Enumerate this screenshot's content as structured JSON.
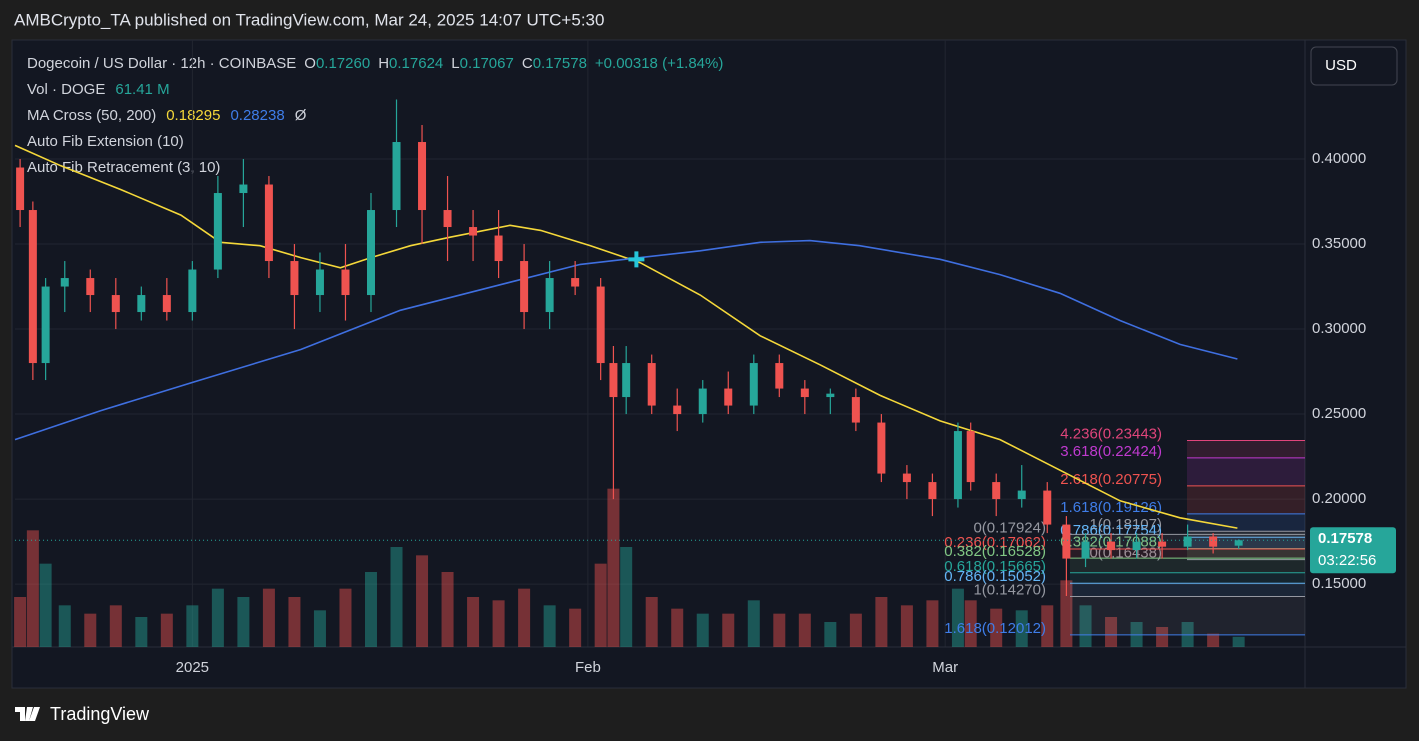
{
  "header": {
    "publisher": "AMBCrypto_TA published on TradingView.com, Mar 24, 2025 14:07 UTC+5:30",
    "brand": "TradingView"
  },
  "chart_data": {
    "type": "candlestick",
    "symbol": "Dogecoin / US Dollar · 12h · COINBASE",
    "ohlc_labels": [
      "O",
      "H",
      "L",
      "C"
    ],
    "ohlc_values": [
      "0.17260",
      "0.17624",
      "0.17067",
      "0.17578"
    ],
    "change": "+0.00318 (+1.84%)",
    "volume_label": "Vol · DOGE",
    "volume_value": "61.41 M",
    "ma_label": "MA Cross (50, 200)",
    "ma_symbol": "Ø",
    "indicators": [
      "Auto Fib Extension (10)",
      "Auto Fib Retracement (3, 10)"
    ],
    "currency": "USD",
    "last_price_label": "0.17578",
    "countdown": "03:22:56",
    "up_color": "#26a69a",
    "down_color": "#ef5350",
    "xlim": [
      -13.9,
      87.2
    ],
    "xticks": [
      {
        "value": 0,
        "label": "2025"
      },
      {
        "value": 31,
        "label": "Feb"
      },
      {
        "value": 59,
        "label": "Mar"
      }
    ],
    "ylim": [
      0.113,
      0.47
    ],
    "yticks": [
      {
        "value": 0.15,
        "label": "0.15000"
      },
      {
        "value": 0.2,
        "label": "0.20000"
      },
      {
        "value": 0.25,
        "label": "0.25000"
      },
      {
        "value": 0.3,
        "label": "0.30000"
      },
      {
        "value": 0.35,
        "label": "0.35000"
      },
      {
        "value": 0.4,
        "label": "0.40000"
      }
    ],
    "vlim": [
      0,
      1200
    ],
    "grid": true,
    "candles": [
      {
        "x": -13.5,
        "open": 0.395,
        "high": 0.4,
        "low": 0.36,
        "close": 0.37,
        "volume": 300
      },
      {
        "x": -12.5,
        "open": 0.37,
        "high": 0.375,
        "low": 0.27,
        "close": 0.28,
        "volume": 700
      },
      {
        "x": -11.5,
        "open": 0.28,
        "high": 0.33,
        "low": 0.27,
        "close": 0.325,
        "volume": 500
      },
      {
        "x": -10,
        "open": 0.325,
        "high": 0.34,
        "low": 0.31,
        "close": 0.33,
        "volume": 250
      },
      {
        "x": -8,
        "open": 0.33,
        "high": 0.335,
        "low": 0.31,
        "close": 0.32,
        "volume": 200
      },
      {
        "x": -6,
        "open": 0.32,
        "high": 0.33,
        "low": 0.3,
        "close": 0.31,
        "volume": 250
      },
      {
        "x": -4,
        "open": 0.31,
        "high": 0.325,
        "low": 0.305,
        "close": 0.32,
        "volume": 180
      },
      {
        "x": -2,
        "open": 0.32,
        "high": 0.33,
        "low": 0.305,
        "close": 0.31,
        "volume": 200
      },
      {
        "x": 0,
        "open": 0.31,
        "high": 0.34,
        "low": 0.305,
        "close": 0.335,
        "volume": 250
      },
      {
        "x": 2,
        "open": 0.335,
        "high": 0.39,
        "low": 0.33,
        "close": 0.38,
        "volume": 350
      },
      {
        "x": 4,
        "open": 0.38,
        "high": 0.4,
        "low": 0.36,
        "close": 0.385,
        "volume": 300
      },
      {
        "x": 6,
        "open": 0.385,
        "high": 0.39,
        "low": 0.33,
        "close": 0.34,
        "volume": 350
      },
      {
        "x": 8,
        "open": 0.34,
        "high": 0.35,
        "low": 0.3,
        "close": 0.32,
        "volume": 300
      },
      {
        "x": 10,
        "open": 0.32,
        "high": 0.345,
        "low": 0.31,
        "close": 0.335,
        "volume": 220
      },
      {
        "x": 12,
        "open": 0.335,
        "high": 0.35,
        "low": 0.305,
        "close": 0.32,
        "volume": 350
      },
      {
        "x": 14,
        "open": 0.32,
        "high": 0.38,
        "low": 0.31,
        "close": 0.37,
        "volume": 450
      },
      {
        "x": 16,
        "open": 0.37,
        "high": 0.435,
        "low": 0.36,
        "close": 0.41,
        "volume": 600
      },
      {
        "x": 18,
        "open": 0.41,
        "high": 0.42,
        "low": 0.35,
        "close": 0.37,
        "volume": 550
      },
      {
        "x": 20,
        "open": 0.37,
        "high": 0.39,
        "low": 0.34,
        "close": 0.36,
        "volume": 450
      },
      {
        "x": 22,
        "open": 0.36,
        "high": 0.37,
        "low": 0.34,
        "close": 0.355,
        "volume": 300
      },
      {
        "x": 24,
        "open": 0.355,
        "high": 0.37,
        "low": 0.33,
        "close": 0.34,
        "volume": 280
      },
      {
        "x": 26,
        "open": 0.34,
        "high": 0.35,
        "low": 0.3,
        "close": 0.31,
        "volume": 350
      },
      {
        "x": 28,
        "open": 0.31,
        "high": 0.34,
        "low": 0.3,
        "close": 0.33,
        "volume": 250
      },
      {
        "x": 30,
        "open": 0.33,
        "high": 0.34,
        "low": 0.32,
        "close": 0.325,
        "volume": 230
      },
      {
        "x": 32,
        "open": 0.325,
        "high": 0.33,
        "low": 0.27,
        "close": 0.28,
        "volume": 500
      },
      {
        "x": 33,
        "open": 0.28,
        "high": 0.29,
        "low": 0.2,
        "close": 0.26,
        "volume": 950
      },
      {
        "x": 34,
        "open": 0.26,
        "high": 0.29,
        "low": 0.25,
        "close": 0.28,
        "volume": 600
      },
      {
        "x": 36,
        "open": 0.28,
        "high": 0.285,
        "low": 0.25,
        "close": 0.255,
        "volume": 300
      },
      {
        "x": 38,
        "open": 0.255,
        "high": 0.265,
        "low": 0.24,
        "close": 0.25,
        "volume": 230
      },
      {
        "x": 40,
        "open": 0.25,
        "high": 0.27,
        "low": 0.245,
        "close": 0.265,
        "volume": 200
      },
      {
        "x": 42,
        "open": 0.265,
        "high": 0.275,
        "low": 0.25,
        "close": 0.255,
        "volume": 200
      },
      {
        "x": 44,
        "open": 0.255,
        "high": 0.285,
        "low": 0.25,
        "close": 0.28,
        "volume": 280
      },
      {
        "x": 46,
        "open": 0.28,
        "high": 0.285,
        "low": 0.26,
        "close": 0.265,
        "volume": 200
      },
      {
        "x": 48,
        "open": 0.265,
        "high": 0.27,
        "low": 0.25,
        "close": 0.26,
        "volume": 200
      },
      {
        "x": 50,
        "open": 0.26,
        "high": 0.265,
        "low": 0.25,
        "close": 0.262,
        "volume": 150
      },
      {
        "x": 52,
        "open": 0.26,
        "high": 0.265,
        "low": 0.24,
        "close": 0.245,
        "volume": 200
      },
      {
        "x": 54,
        "open": 0.245,
        "high": 0.25,
        "low": 0.21,
        "close": 0.215,
        "volume": 300
      },
      {
        "x": 56,
        "open": 0.215,
        "high": 0.22,
        "low": 0.2,
        "close": 0.21,
        "volume": 250
      },
      {
        "x": 58,
        "open": 0.21,
        "high": 0.215,
        "low": 0.19,
        "close": 0.2,
        "volume": 280
      },
      {
        "x": 60,
        "open": 0.2,
        "high": 0.245,
        "low": 0.195,
        "close": 0.24,
        "volume": 350
      },
      {
        "x": 61,
        "open": 0.24,
        "high": 0.245,
        "low": 0.205,
        "close": 0.21,
        "volume": 280
      },
      {
        "x": 63,
        "open": 0.21,
        "high": 0.215,
        "low": 0.19,
        "close": 0.2,
        "volume": 230
      },
      {
        "x": 65,
        "open": 0.2,
        "high": 0.22,
        "low": 0.195,
        "close": 0.205,
        "volume": 220
      },
      {
        "x": 67,
        "open": 0.205,
        "high": 0.21,
        "low": 0.18,
        "close": 0.185,
        "volume": 250
      },
      {
        "x": 68.5,
        "open": 0.185,
        "high": 0.19,
        "low": 0.143,
        "close": 0.165,
        "volume": 400
      },
      {
        "x": 70,
        "open": 0.165,
        "high": 0.18,
        "low": 0.16,
        "close": 0.175,
        "volume": 250
      },
      {
        "x": 72,
        "open": 0.175,
        "high": 0.18,
        "low": 0.165,
        "close": 0.17,
        "volume": 180
      },
      {
        "x": 74,
        "open": 0.17,
        "high": 0.18,
        "low": 0.165,
        "close": 0.175,
        "volume": 150
      },
      {
        "x": 76,
        "open": 0.175,
        "high": 0.18,
        "low": 0.165,
        "close": 0.172,
        "volume": 120
      },
      {
        "x": 78,
        "open": 0.172,
        "high": 0.185,
        "low": 0.17,
        "close": 0.178,
        "volume": 150
      },
      {
        "x": 80,
        "open": 0.178,
        "high": 0.18,
        "low": 0.168,
        "close": 0.172,
        "volume": 80
      },
      {
        "x": 82,
        "open": 0.1726,
        "high": 0.17624,
        "low": 0.17067,
        "close": 0.17578,
        "volume": 61.41
      }
    ],
    "series": [
      {
        "color": "#f5d83a",
        "value_label": "0.18295",
        "x": [
          -13.9,
          -10.3,
          -5.6,
          -0.9,
          2.2,
          5.3,
          8.5,
          11.6,
          14.0,
          17.1,
          20.2,
          24.9,
          27.3,
          31.2,
          35.1,
          39.8,
          44.5,
          49.2,
          53.9,
          58.6,
          63.3,
          68.0,
          72.7,
          77.4,
          81.9
        ],
        "values": [
          0.408,
          0.396,
          0.382,
          0.367,
          0.351,
          0.349,
          0.342,
          0.336,
          0.342,
          0.349,
          0.354,
          0.361,
          0.358,
          0.349,
          0.339,
          0.32,
          0.296,
          0.279,
          0.261,
          0.246,
          0.235,
          0.217,
          0.199,
          0.189,
          0.18295
        ]
      },
      {
        "color": "#3f6fe0",
        "value_label": "0.28238",
        "x": [
          -13.9,
          -7.2,
          0.6,
          8.5,
          16.3,
          24.1,
          30.4,
          35.1,
          39.8,
          44.5,
          48.4,
          52.3,
          58.6,
          63.3,
          68.0,
          72.7,
          77.4,
          81.9
        ],
        "values": [
          0.235,
          0.252,
          0.27,
          0.288,
          0.311,
          0.326,
          0.338,
          0.342,
          0.346,
          0.351,
          0.352,
          0.349,
          0.341,
          0.332,
          0.321,
          0.305,
          0.291,
          0.28238
        ]
      }
    ],
    "cross": {
      "x": 34.8,
      "y": 0.341,
      "color": "#26c6da"
    },
    "fib_extension": [
      {
        "label": "4.236(0.23443)",
        "value": 0.23443,
        "color": "#e0457b"
      },
      {
        "label": "3.618(0.22424)",
        "value": 0.22424,
        "color": "#c03ad0"
      },
      {
        "label": "2.618(0.20775)",
        "value": 0.20775,
        "color": "#ef5350"
      },
      {
        "label": "1.618(0.19126)",
        "value": 0.19126,
        "color": "#3f7de8"
      },
      {
        "label": "1(0.18107)",
        "value": 0.18107,
        "color": "#9598a1"
      },
      {
        "label": "0.786(0.17754)",
        "value": 0.17754,
        "color": "#64b5f6"
      },
      {
        "label": "0.382(0.17088)",
        "value": 0.17088,
        "color": "#81c784"
      },
      {
        "label": "0(0.16438)",
        "value": 0.16438,
        "color": "#9598a1"
      }
    ],
    "fib_retracement": [
      {
        "label": "0(0.17924)",
        "value": 0.17924,
        "color": "#9598a1"
      },
      {
        "label": "0.236(0.17062)",
        "value": 0.17062,
        "color": "#ef5350"
      },
      {
        "label": "0.382(0.16528)",
        "value": 0.16528,
        "color": "#81c784"
      },
      {
        "label": "0.618(0.15665)",
        "value": 0.15665,
        "color": "#26a69a"
      },
      {
        "label": "0.786(0.15052)",
        "value": 0.15052,
        "color": "#64b5f6"
      },
      {
        "label": "1(0.14270)",
        "value": 0.1427,
        "color": "#9598a1"
      },
      {
        "label": "1.618(0.12012)",
        "value": 0.12012,
        "color": "#3f7de8"
      }
    ]
  }
}
